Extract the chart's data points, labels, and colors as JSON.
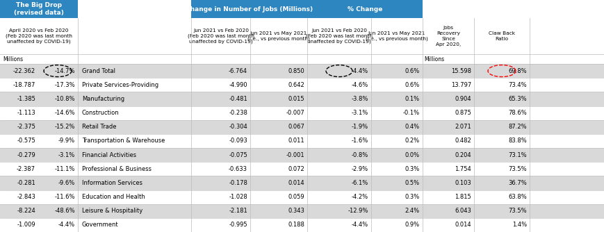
{
  "header_bg_color": "#2E86C1",
  "header_text_color": "#FFFFFF",
  "row_colors": [
    "#D9D9D9",
    "#FFFFFF"
  ],
  "text_color": "#000000",
  "rows": [
    [
      "Grand Total",
      "-22.362",
      "-14.7%",
      "-6.764",
      "0.850",
      "-4.4%",
      "0.6%",
      "15.598",
      "69.8%"
    ],
    [
      "Private Services-Providing",
      "-18.787",
      "-17.3%",
      "-4.990",
      "0.642",
      "-4.6%",
      "0.6%",
      "13.797",
      "73.4%"
    ],
    [
      "Manufacturing",
      "-1.385",
      "-10.8%",
      "-0.481",
      "0.015",
      "-3.8%",
      "0.1%",
      "0.904",
      "65.3%"
    ],
    [
      "Construction",
      "-1.113",
      "-14.6%",
      "-0.238",
      "-0.007",
      "-3.1%",
      "-0.1%",
      "0.875",
      "78.6%"
    ],
    [
      "Retail Trade",
      "-2.375",
      "-15.2%",
      "-0.304",
      "0.067",
      "-1.9%",
      "0.4%",
      "2.071",
      "87.2%"
    ],
    [
      "Transportation & Warehouse",
      "-0.575",
      "-9.9%",
      "-0.093",
      "0.011",
      "-1.6%",
      "0.2%",
      "0.482",
      "83.8%"
    ],
    [
      "Financial Activities",
      "-0.279",
      "-3.1%",
      "-0.075",
      "-0.001",
      "-0.8%",
      "0.0%",
      "0.204",
      "73.1%"
    ],
    [
      "Professional & Business",
      "-2.387",
      "-11.1%",
      "-0.633",
      "0.072",
      "-2.9%",
      "0.3%",
      "1.754",
      "73.5%"
    ],
    [
      "Information Services",
      "-0.281",
      "-9.6%",
      "-0.178",
      "0.014",
      "-6.1%",
      "0.5%",
      "0.103",
      "36.7%"
    ],
    [
      "Education and Health",
      "-2.843",
      "-11.6%",
      "-1.028",
      "0.059",
      "-4.2%",
      "0.3%",
      "1.815",
      "63.8%"
    ],
    [
      "Leisure & Hospitality",
      "-8.224",
      "-48.6%",
      "-2.181",
      "0.343",
      "-12.9%",
      "2.4%",
      "6.043",
      "73.5%"
    ],
    [
      "Government",
      "-1.009",
      "-4.4%",
      "-0.995",
      "0.188",
      "-4.4%",
      "0.9%",
      "0.014",
      "1.4%"
    ]
  ],
  "col_sep_color": "#BBBBBB",
  "border_color": "#AAAAAA",
  "fig_w": 8.7,
  "fig_h": 3.34,
  "dpi": 100
}
